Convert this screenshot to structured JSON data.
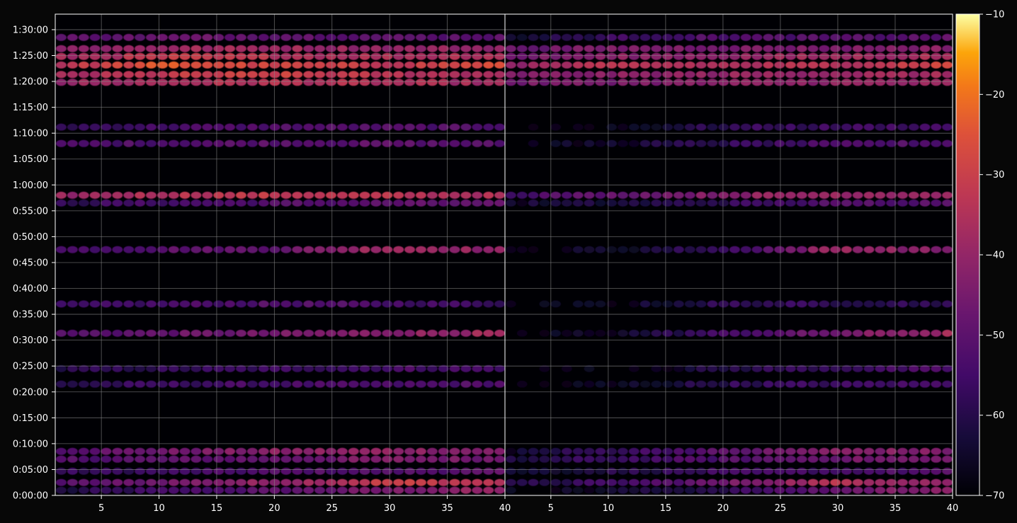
{
  "chart_data": {
    "type": "heatmap",
    "panels": [
      {
        "name": "",
        "x_ticks": [
          5,
          10,
          15,
          20,
          25,
          30,
          35,
          40
        ],
        "xlim": [
          1,
          40
        ]
      },
      {
        "name": "",
        "x_ticks": [
          5,
          10,
          15,
          20,
          25,
          30,
          35,
          40
        ],
        "xlim": [
          1,
          40
        ]
      }
    ],
    "xlabel": "",
    "ylabel": "",
    "ylim_seconds": [
      0,
      5580
    ],
    "y_tick_labels": [
      "0:00:00",
      "0:05:00",
      "0:10:00",
      "0:15:00",
      "0:20:00",
      "0:25:00",
      "0:30:00",
      "0:35:00",
      "0:40:00",
      "0:45:00",
      "0:50:00",
      "0:55:00",
      "1:00:00",
      "1:05:00",
      "1:10:00",
      "1:15:00",
      "1:20:00",
      "1:25:00",
      "1:30:00"
    ],
    "grid": true,
    "colormap": "inferno",
    "colorbar": {
      "min": -70,
      "max": -10,
      "ticks": [
        -70,
        -60,
        -50,
        -40,
        -30,
        -20,
        -10
      ],
      "tick_labels": [
        "−70",
        "−60",
        "−50",
        "−40",
        "−30",
        "−20",
        "−10"
      ]
    },
    "bands": [
      {
        "time_seconds": 60,
        "left": [
          -62,
          -55,
          -50,
          -45,
          -40
        ],
        "right": [
          -68,
          -64,
          -58,
          -48,
          -40
        ]
      },
      {
        "time_seconds": 150,
        "left": [
          -52,
          -45,
          -40,
          -30,
          -34
        ],
        "right": [
          -62,
          -55,
          -46,
          -34,
          -40
        ]
      },
      {
        "time_seconds": 280,
        "left": [
          -58,
          -56,
          -52,
          -52,
          -50
        ],
        "right": [
          -64,
          -60,
          -56,
          -54,
          -52
        ]
      },
      {
        "time_seconds": 420,
        "left": [
          -52,
          -50,
          -48,
          -44,
          -46
        ],
        "right": [
          -62,
          -56,
          -52,
          -46,
          -46
        ]
      },
      {
        "time_seconds": 510,
        "left": [
          -50,
          -46,
          -42,
          -40,
          -44
        ],
        "right": [
          -64,
          -56,
          -50,
          -42,
          -44
        ]
      },
      {
        "time_seconds": 1290,
        "left": [
          -60,
          -56,
          -54,
          -54,
          -52
        ],
        "right": [
          -69,
          -66,
          -58,
          -56,
          -54
        ]
      },
      {
        "time_seconds": 1470,
        "left": [
          -60,
          -58,
          -56,
          -54,
          -54
        ],
        "right": [
          -69,
          -68,
          -60,
          -56,
          -54
        ]
      },
      {
        "time_seconds": 1880,
        "left": [
          -52,
          -48,
          -46,
          -42,
          -38
        ],
        "right": [
          -69,
          -64,
          -54,
          -46,
          -38
        ]
      },
      {
        "time_seconds": 2220,
        "left": [
          -58,
          -54,
          -52,
          -54,
          -56
        ],
        "right": [
          -69,
          -66,
          -58,
          -58,
          -58
        ]
      },
      {
        "time_seconds": 2850,
        "left": [
          -54,
          -50,
          -48,
          -36,
          -42
        ],
        "right": [
          -69,
          -64,
          -56,
          -38,
          -44
        ]
      },
      {
        "time_seconds": 3390,
        "left": [
          -58,
          -54,
          -52,
          -50,
          -50
        ],
        "right": [
          -64,
          -62,
          -58,
          -52,
          -50
        ]
      },
      {
        "time_seconds": 3480,
        "left": [
          -40,
          -34,
          -32,
          -34,
          -36
        ],
        "right": [
          -54,
          -48,
          -42,
          -38,
          -38
        ]
      },
      {
        "time_seconds": 4080,
        "left": [
          -54,
          -52,
          -50,
          -50,
          -52
        ],
        "right": [
          -69,
          -64,
          -58,
          -54,
          -52
        ]
      },
      {
        "time_seconds": 4270,
        "left": [
          -58,
          -54,
          -52,
          -52,
          -52
        ],
        "right": [
          -69,
          -66,
          -58,
          -56,
          -54
        ]
      },
      {
        "time_seconds": 4790,
        "left": [
          -40,
          -36,
          -34,
          -36,
          -38
        ],
        "right": [
          -46,
          -44,
          -42,
          -40,
          -40
        ]
      },
      {
        "time_seconds": 4880,
        "left": [
          -38,
          -32,
          -30,
          -34,
          -36
        ],
        "right": [
          -44,
          -42,
          -40,
          -38,
          -38
        ]
      },
      {
        "time_seconds": 4990,
        "left": [
          -34,
          -24,
          -30,
          -32,
          -26
        ],
        "right": [
          -40,
          -34,
          -36,
          -34,
          -28
        ]
      },
      {
        "time_seconds": 5090,
        "left": [
          -38,
          -32,
          -34,
          -36,
          -34
        ],
        "right": [
          -46,
          -42,
          -40,
          -38,
          -36
        ]
      },
      {
        "time_seconds": 5180,
        "left": [
          -42,
          -38,
          -38,
          -40,
          -40
        ],
        "right": [
          -48,
          -44,
          -44,
          -44,
          -42
        ]
      },
      {
        "time_seconds": 5310,
        "left": [
          -50,
          -48,
          -48,
          -50,
          -50
        ],
        "right": [
          -64,
          -56,
          -52,
          -52,
          -50
        ]
      }
    ]
  }
}
